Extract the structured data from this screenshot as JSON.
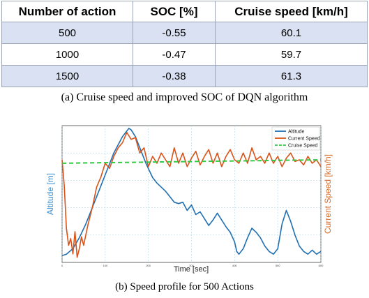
{
  "table": {
    "headers": [
      "Number of action",
      "SOC [%]",
      "Cruise speed [km/h]"
    ],
    "rows": [
      [
        "500",
        "-0.55",
        "60.1"
      ],
      [
        "1000",
        "-0.47",
        "59.7"
      ],
      [
        "1500",
        "-0.38",
        "61.3"
      ]
    ]
  },
  "caption_a": "(a) Cruise speed and improved SOC of DQN algorithm",
  "caption_b": "(b) Speed profile for 500 Actions",
  "chart_data": {
    "type": "line",
    "xlabel": "Time [sec]",
    "ylabel_left": "Altitude [m]",
    "ylabel_right": "Current Speed [km/h]",
    "xlim": [
      0,
      600
    ],
    "xticks": [
      "0",
      "100",
      "200",
      "300",
      "400",
      "500",
      "600"
    ],
    "grid": true,
    "legend_position": "top-right",
    "colors": {
      "altitude": "#1f6fb2",
      "speed": "#d95319",
      "cruise": "#2ecc40",
      "left_axis": "#3a8fd0",
      "right_axis": "#d46a2a"
    },
    "series": [
      {
        "name": "Altitude",
        "axis": "left",
        "x": [
          0,
          10,
          25,
          40,
          55,
          70,
          85,
          100,
          110,
          120,
          130,
          140,
          150,
          155,
          160,
          170,
          180,
          195,
          210,
          220,
          230,
          240,
          250,
          260,
          270,
          280,
          290,
          300,
          310,
          320,
          330,
          340,
          350,
          360,
          370,
          380,
          390,
          400,
          405,
          410,
          420,
          430,
          440,
          450,
          460,
          470,
          480,
          490,
          500,
          510,
          520,
          530,
          540,
          550,
          560,
          570,
          580,
          590,
          600
        ],
        "y": [
          5,
          6,
          10,
          18,
          28,
          40,
          52,
          64,
          72,
          80,
          86,
          92,
          96,
          98,
          97,
          92,
          84,
          72,
          62,
          58,
          55,
          52,
          48,
          44,
          43,
          44,
          38,
          42,
          35,
          37,
          32,
          27,
          31,
          36,
          31,
          26,
          22,
          15,
          8,
          6,
          10,
          18,
          25,
          22,
          18,
          12,
          8,
          6,
          10,
          28,
          38,
          30,
          20,
          12,
          8,
          6,
          9,
          6,
          8
        ]
      },
      {
        "name": "Current Speed",
        "axis": "right",
        "x": [
          0,
          5,
          10,
          15,
          20,
          25,
          30,
          35,
          40,
          45,
          50,
          60,
          70,
          80,
          90,
          100,
          110,
          120,
          130,
          140,
          150,
          160,
          170,
          180,
          190,
          200,
          210,
          220,
          230,
          240,
          250,
          260,
          270,
          280,
          290,
          300,
          310,
          320,
          330,
          340,
          350,
          360,
          370,
          380,
          390,
          400,
          410,
          420,
          430,
          440,
          450,
          460,
          470,
          480,
          490,
          500,
          510,
          520,
          530,
          540,
          550,
          560,
          570,
          580,
          590,
          600
        ],
        "y": [
          60,
          45,
          20,
          10,
          14,
          5,
          18,
          3,
          8,
          15,
          10,
          22,
          32,
          44,
          50,
          58,
          55,
          62,
          67,
          70,
          76,
          72,
          73,
          64,
          67,
          56,
          62,
          58,
          64,
          60,
          56,
          67,
          58,
          64,
          56,
          61,
          65,
          57,
          62,
          66,
          58,
          64,
          56,
          62,
          66,
          60,
          58,
          64,
          58,
          67,
          60,
          62,
          58,
          64,
          58,
          62,
          56,
          61,
          64,
          59,
          60,
          57,
          62,
          58,
          60,
          56
        ]
      },
      {
        "name": "Cruise Speed",
        "axis": "right",
        "x": [
          0,
          600
        ],
        "y": [
          58,
          60
        ]
      }
    ]
  }
}
